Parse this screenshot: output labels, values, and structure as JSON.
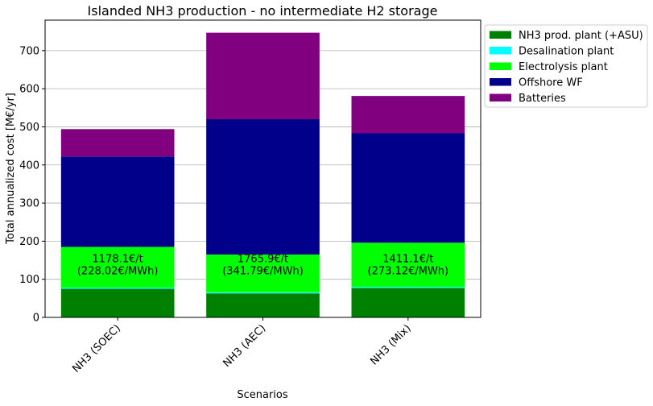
{
  "chart_data": {
    "type": "bar",
    "stacked": true,
    "title": "Islanded NH3 production - no intermediate H2 storage",
    "xlabel": "Scenarios",
    "ylabel": "Total annualized cost [M€/yr]",
    "categories": [
      "NH3 (SOEC)",
      "NH3 (AEC)",
      "NH3 (Mix)"
    ],
    "ylim": [
      0,
      780
    ],
    "yticks": [
      0,
      100,
      200,
      300,
      400,
      500,
      600,
      700
    ],
    "grid": "y",
    "legend_position": "outside-top-right",
    "series": [
      {
        "name": "NH3 prod. plant (+ASU)",
        "color": "#008000",
        "values": [
          75,
          63,
          77
        ]
      },
      {
        "name": "Desalination plant",
        "color": "#00ffff",
        "values": [
          3,
          3,
          3
        ]
      },
      {
        "name": "Electrolysis plant",
        "color": "#00ff00",
        "values": [
          107,
          99,
          116
        ]
      },
      {
        "name": "Offshore WF",
        "color": "#00008b",
        "values": [
          237,
          355,
          287
        ]
      },
      {
        "name": "Batteries",
        "color": "#800080",
        "values": [
          72,
          227,
          98
        ]
      }
    ],
    "annotations": [
      {
        "line1": "1178.1€/t",
        "line2": "(228.02€/MWh)"
      },
      {
        "line1": "1765.9€/t",
        "line2": "(341.79€/MWh)"
      },
      {
        "line1": "1411.1€/t",
        "line2": "(273.12€/MWh)"
      }
    ]
  }
}
